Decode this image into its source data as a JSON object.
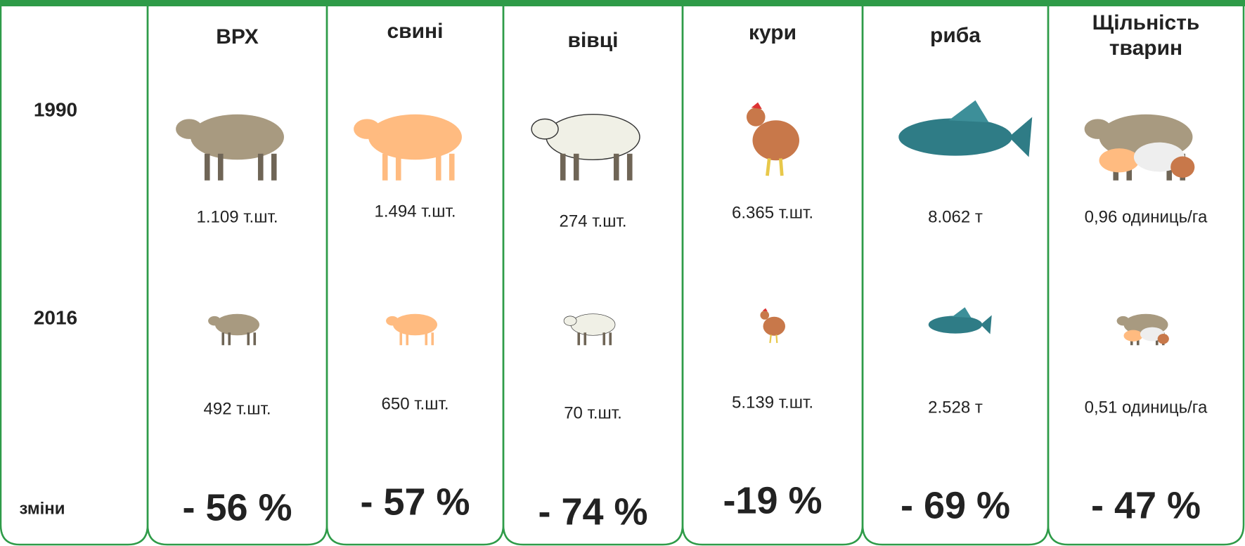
{
  "row_labels": [
    "1990",
    "2016",
    "зміни"
  ],
  "columns": [
    {
      "title_lines": [
        "ВРХ"
      ],
      "value_1990": "1.109 т.шт.",
      "value_2016": "492 т.шт.",
      "change": "- 56 %"
    },
    {
      "title_lines": [
        "свині"
      ],
      "value_1990": "1.494 т.шт.",
      "value_2016": "650 т.шт.",
      "change": "- 57 %"
    },
    {
      "title_lines": [
        "вівці"
      ],
      "value_1990": "274 т.шт.",
      "value_2016": "70 т.шт.",
      "change": "- 74 %"
    },
    {
      "title_lines": [
        "кури"
      ],
      "value_1990": "6.365 т.шт.",
      "value_2016": "5.139 т.шт.",
      "change": "-19 %"
    },
    {
      "title_lines": [
        "риба"
      ],
      "value_1990": "8.062 т",
      "value_2016": "2.528  т",
      "change": "- 69 %"
    },
    {
      "title_lines": [
        "Щільність",
        "тварин"
      ],
      "value_1990": "0,96 одиниць/га",
      "value_2016": "0,51 одиниць/га",
      "change": "- 47 %"
    }
  ]
}
